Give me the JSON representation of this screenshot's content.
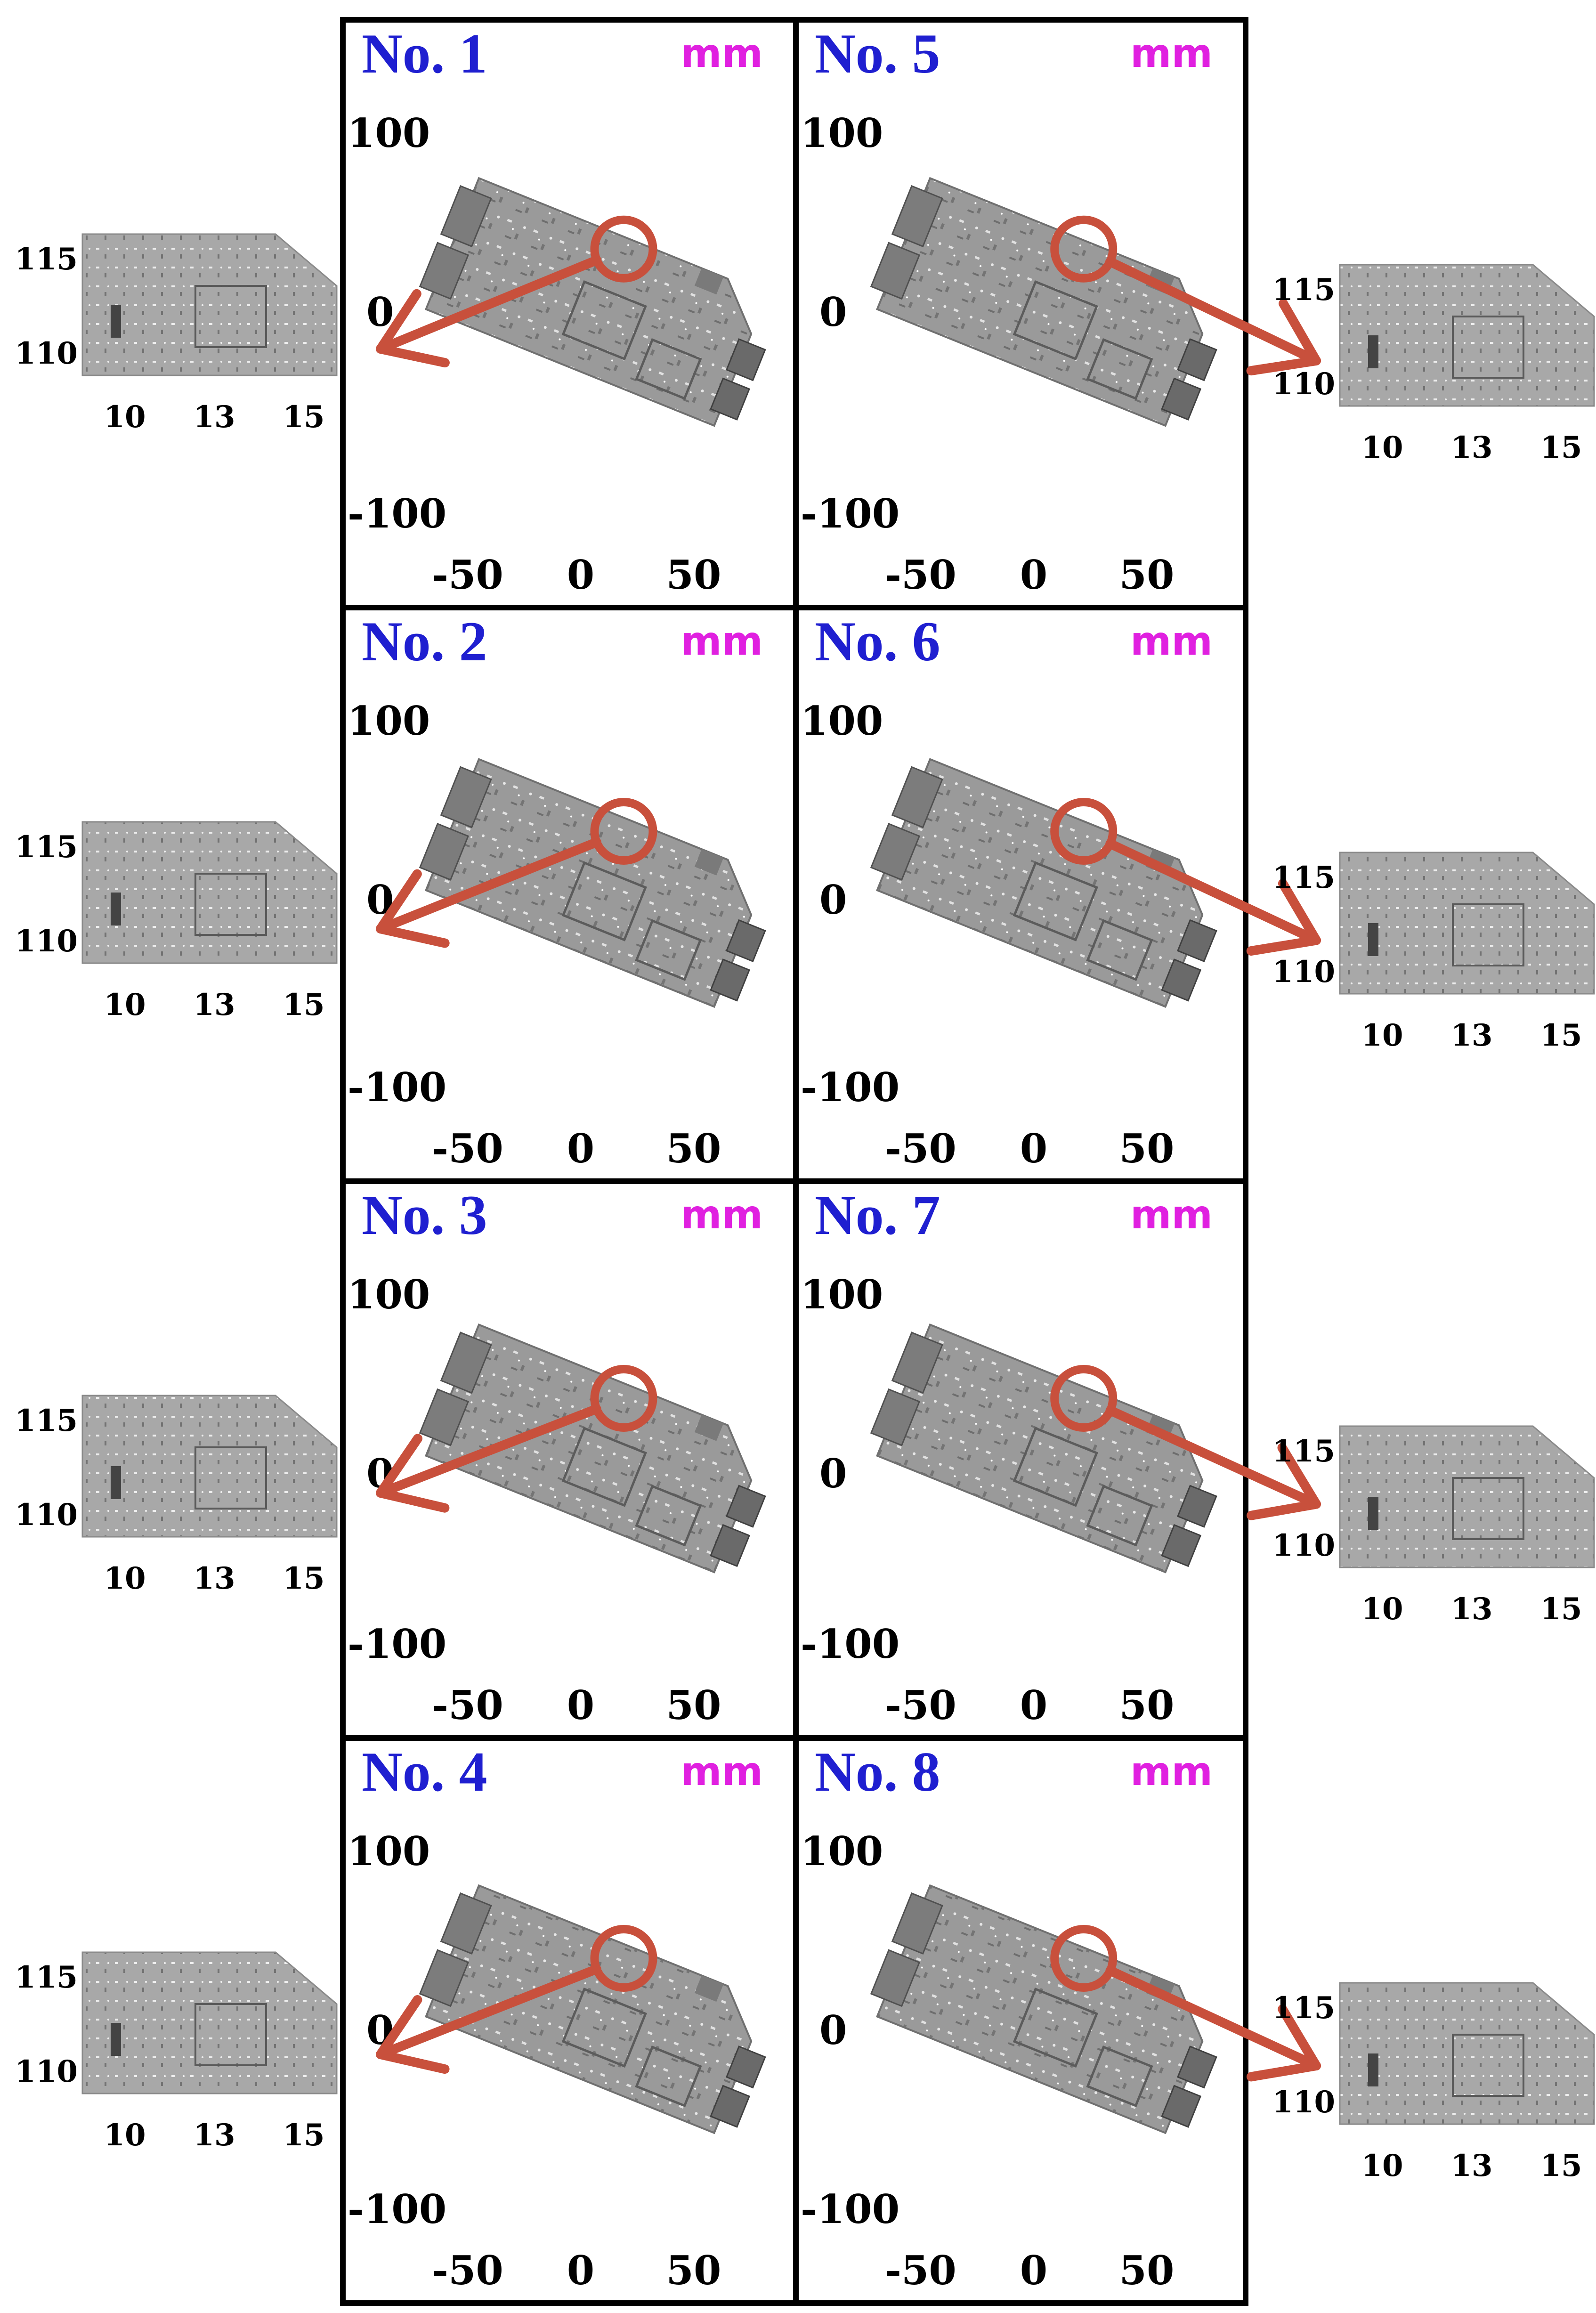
{
  "colors": {
    "title": "#1f1fd0",
    "unit": "#e020e0",
    "arrow": "#c8503c",
    "board": "#9a9a9a",
    "frame": "#000000"
  },
  "unit": "mm",
  "ticks": {
    "main_x": [
      "-50",
      "0",
      "50"
    ],
    "main_y": [
      "100",
      "0",
      "-100"
    ],
    "inset_x": [
      "10",
      "13",
      "15"
    ],
    "inset_y": [
      "115",
      "110"
    ]
  },
  "panels": [
    {
      "label": "No. 1",
      "direction": "left"
    },
    {
      "label": "No. 2",
      "direction": "left"
    },
    {
      "label": "No. 3",
      "direction": "left"
    },
    {
      "label": "No. 4",
      "direction": "left"
    },
    {
      "label": "No. 5",
      "direction": "right"
    },
    {
      "label": "No. 6",
      "direction": "right"
    },
    {
      "label": "No. 7",
      "direction": "right"
    },
    {
      "label": "No. 8",
      "direction": "right"
    }
  ]
}
